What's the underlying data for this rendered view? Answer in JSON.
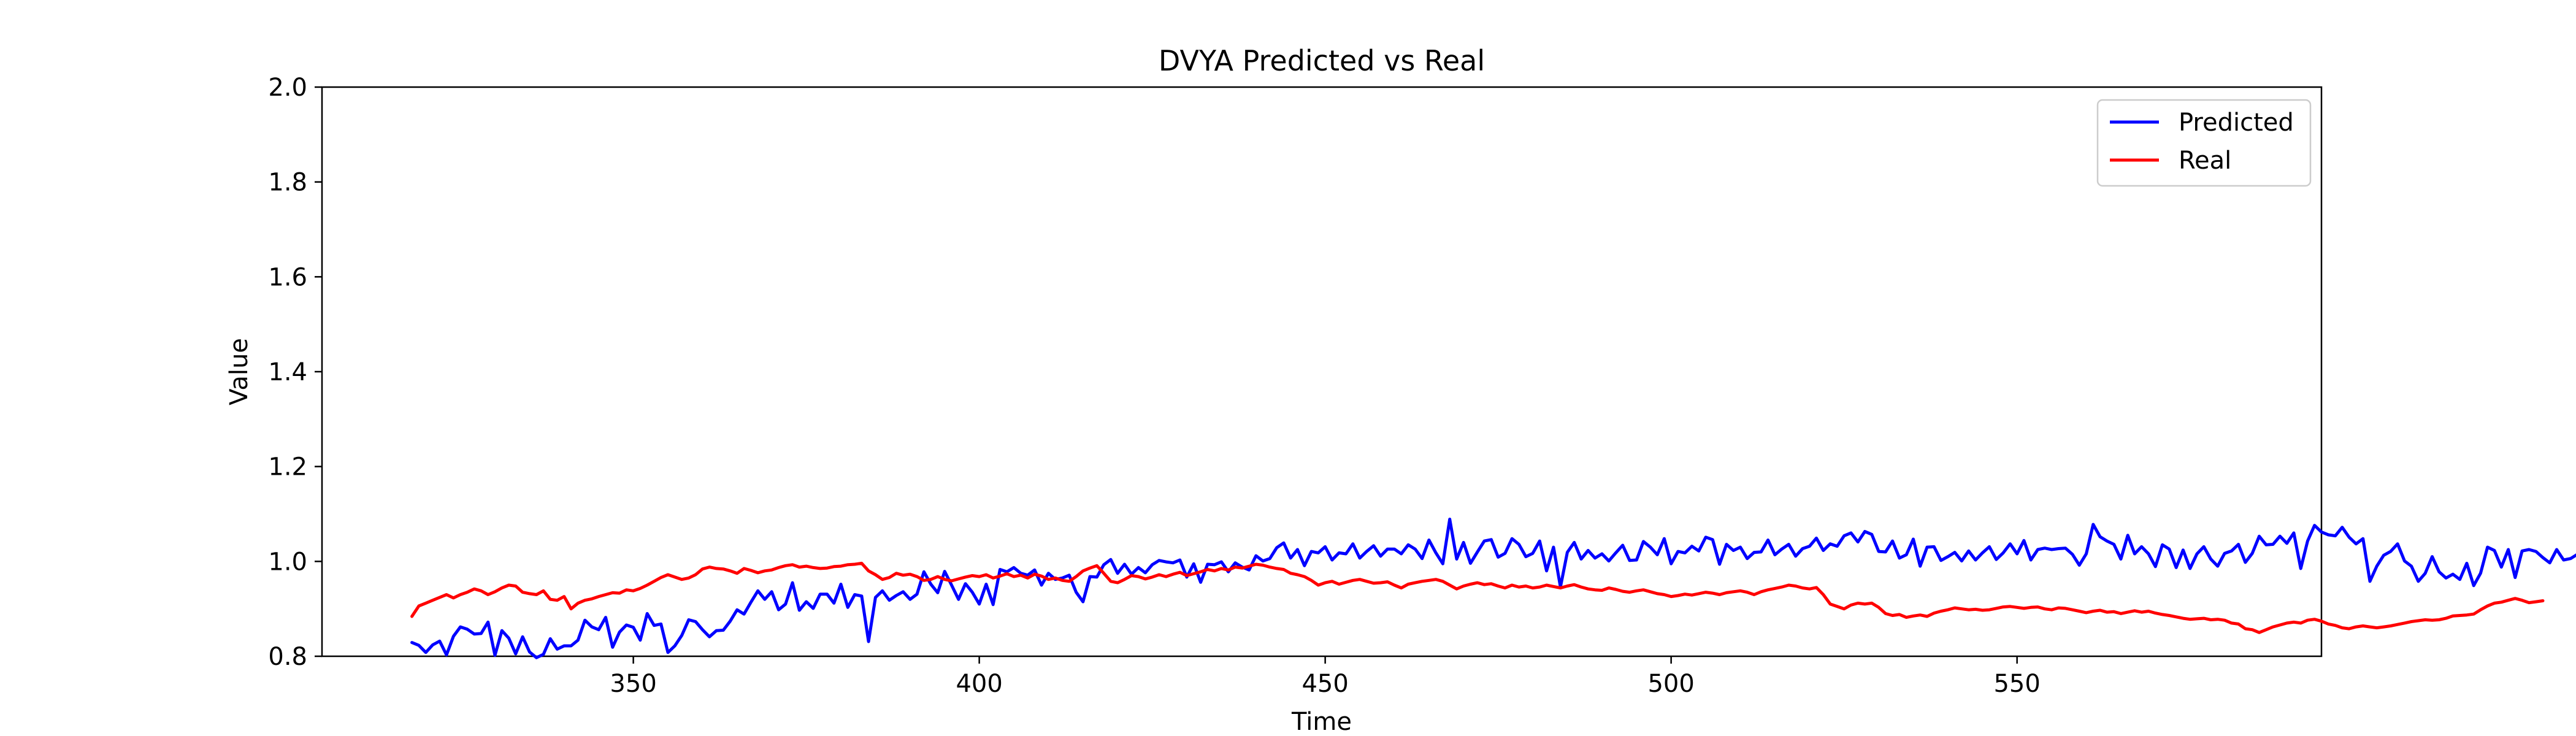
{
  "chart_data": {
    "type": "line",
    "title": "DVYA Predicted vs Real",
    "xlabel": "Time",
    "ylabel": "Value",
    "xlim": [
      305,
      594
    ],
    "ylim": [
      0.8,
      2.0
    ],
    "x_ticks": [
      350,
      400,
      450,
      500,
      550
    ],
    "y_ticks": [
      0.8,
      1.0,
      1.2,
      1.4,
      1.6,
      1.8,
      2.0
    ],
    "grid": false,
    "legend_position": "top-right",
    "x_start": 318,
    "series": [
      {
        "name": "Predicted",
        "color": "#0000ff",
        "values": [
          0.829,
          0.823,
          0.808,
          0.824,
          0.832,
          0.803,
          0.842,
          0.862,
          0.857,
          0.847,
          0.848,
          0.872,
          0.802,
          0.854,
          0.838,
          0.805,
          0.841,
          0.809,
          0.797,
          0.804,
          0.837,
          0.815,
          0.822,
          0.822,
          0.834,
          0.876,
          0.862,
          0.856,
          0.882,
          0.819,
          0.851,
          0.866,
          0.861,
          0.834,
          0.89,
          0.865,
          0.868,
          0.808,
          0.822,
          0.844,
          0.877,
          0.873,
          0.856,
          0.841,
          0.854,
          0.855,
          0.874,
          0.898,
          0.889,
          0.914,
          0.938,
          0.92,
          0.936,
          0.898,
          0.91,
          0.955,
          0.897,
          0.915,
          0.901,
          0.931,
          0.931,
          0.912,
          0.952,
          0.903,
          0.93,
          0.927,
          0.831,
          0.924,
          0.938,
          0.918,
          0.928,
          0.936,
          0.92,
          0.931,
          0.978,
          0.952,
          0.934,
          0.979,
          0.95,
          0.92,
          0.953,
          0.935,
          0.91,
          0.952,
          0.909,
          0.983,
          0.978,
          0.987,
          0.975,
          0.971,
          0.982,
          0.95,
          0.975,
          0.962,
          0.965,
          0.971,
          0.935,
          0.915,
          0.968,
          0.967,
          0.993,
          1.004,
          0.975,
          0.994,
          0.973,
          0.987,
          0.976,
          0.993,
          1.002,
          0.999,
          0.997,
          1.003,
          0.967,
          0.995,
          0.956,
          0.994,
          0.993,
          0.999,
          0.978,
          0.997,
          0.988,
          0.982,
          1.012,
          1.001,
          1.006,
          1.029,
          1.039,
          1.007,
          1.025,
          0.991,
          1.021,
          1.018,
          1.031,
          1.003,
          1.018,
          1.016,
          1.037,
          1.007,
          1.021,
          1.033,
          1.011,
          1.026,
          1.026,
          1.016,
          1.035,
          1.026,
          1.006,
          1.045,
          1.018,
          0.995,
          1.089,
          1.005,
          1.04,
          0.996,
          1.02,
          1.043,
          1.046,
          1.009,
          1.017,
          1.048,
          1.036,
          1.01,
          1.017,
          1.043,
          0.98,
          1.03,
          0.946,
          1.019,
          1.04,
          1.005,
          1.023,
          1.007,
          1.016,
          1.001,
          1.018,
          1.034,
          1.002,
          1.003,
          1.042,
          1.03,
          1.014,
          1.048,
          0.995,
          1.021,
          1.018,
          1.032,
          1.022,
          1.051,
          1.046,
          0.994,
          1.036,
          1.023,
          1.03,
          1.006,
          1.019,
          1.02,
          1.045,
          1.014,
          1.026,
          1.036,
          1.011,
          1.027,
          1.032,
          1.049,
          1.023,
          1.037,
          1.032,
          1.054,
          1.06,
          1.041,
          1.063,
          1.057,
          1.021,
          1.02,
          1.043,
          1.007,
          1.014,
          1.047,
          0.99,
          1.03,
          1.031,
          1.002,
          1.01,
          1.019,
          1.001,
          1.022,
          1.003,
          1.018,
          1.031,
          1.004,
          1.018,
          1.037,
          1.016,
          1.044,
          1.003,
          1.025,
          1.028,
          1.025,
          1.027,
          1.028,
          1.015,
          0.992,
          1.016,
          1.078,
          1.052,
          1.043,
          1.036,
          1.005,
          1.055,
          1.016,
          1.031,
          1.016,
          0.989,
          1.035,
          1.026,
          0.987,
          1.024,
          0.985,
          1.016,
          1.031,
          1.005,
          0.99,
          1.017,
          1.022,
          1.036,
          0.998,
          1.017,
          1.053,
          1.035,
          1.036,
          1.053,
          1.038,
          1.06,
          0.985,
          1.043,
          1.076,
          1.062,
          1.056,
          1.054,
          1.072,
          1.051,
          1.037,
          1.048,
          0.958,
          0.99,
          1.013,
          1.021,
          1.037,
          1.001,
          0.99,
          0.958,
          0.975,
          1.01,
          0.978,
          0.965,
          0.973,
          0.962,
          0.996,
          0.949,
          0.975,
          1.03,
          1.023,
          0.988,
          1.025,
          0.966,
          1.022,
          1.025,
          1.021,
          1.008,
          0.997,
          1.025,
          1.003,
          1.006,
          1.015
        ]
      },
      {
        "name": "Real",
        "color": "#ff0000",
        "values": [
          0.884,
          0.906,
          0.912,
          0.918,
          0.924,
          0.93,
          0.923,
          0.93,
          0.935,
          0.942,
          0.938,
          0.93,
          0.936,
          0.944,
          0.95,
          0.948,
          0.935,
          0.932,
          0.93,
          0.938,
          0.92,
          0.918,
          0.926,
          0.9,
          0.912,
          0.918,
          0.921,
          0.926,
          0.93,
          0.934,
          0.933,
          0.94,
          0.938,
          0.943,
          0.95,
          0.958,
          0.966,
          0.972,
          0.967,
          0.962,
          0.965,
          0.972,
          0.984,
          0.988,
          0.985,
          0.984,
          0.98,
          0.975,
          0.985,
          0.981,
          0.976,
          0.98,
          0.982,
          0.987,
          0.991,
          0.993,
          0.988,
          0.99,
          0.987,
          0.985,
          0.986,
          0.989,
          0.99,
          0.993,
          0.994,
          0.996,
          0.98,
          0.972,
          0.962,
          0.966,
          0.975,
          0.971,
          0.973,
          0.968,
          0.96,
          0.962,
          0.968,
          0.962,
          0.959,
          0.963,
          0.967,
          0.97,
          0.968,
          0.972,
          0.965,
          0.969,
          0.974,
          0.968,
          0.971,
          0.965,
          0.973,
          0.969,
          0.962,
          0.965,
          0.96,
          0.958,
          0.968,
          0.98,
          0.986,
          0.991,
          0.975,
          0.958,
          0.955,
          0.962,
          0.97,
          0.968,
          0.963,
          0.967,
          0.972,
          0.968,
          0.973,
          0.977,
          0.97,
          0.974,
          0.978,
          0.983,
          0.98,
          0.985,
          0.982,
          0.988,
          0.986,
          0.99,
          0.994,
          0.992,
          0.988,
          0.985,
          0.983,
          0.975,
          0.972,
          0.968,
          0.96,
          0.95,
          0.955,
          0.958,
          0.952,
          0.956,
          0.96,
          0.962,
          0.958,
          0.954,
          0.955,
          0.957,
          0.95,
          0.944,
          0.952,
          0.955,
          0.958,
          0.96,
          0.962,
          0.958,
          0.95,
          0.942,
          0.948,
          0.952,
          0.955,
          0.951,
          0.953,
          0.948,
          0.944,
          0.95,
          0.946,
          0.948,
          0.944,
          0.946,
          0.95,
          0.947,
          0.944,
          0.948,
          0.951,
          0.946,
          0.942,
          0.94,
          0.939,
          0.944,
          0.941,
          0.937,
          0.935,
          0.938,
          0.94,
          0.936,
          0.932,
          0.93,
          0.926,
          0.928,
          0.931,
          0.929,
          0.932,
          0.935,
          0.933,
          0.93,
          0.934,
          0.936,
          0.938,
          0.935,
          0.93,
          0.936,
          0.94,
          0.943,
          0.946,
          0.95,
          0.948,
          0.944,
          0.942,
          0.945,
          0.93,
          0.91,
          0.905,
          0.9,
          0.908,
          0.912,
          0.91,
          0.912,
          0.903,
          0.89,
          0.886,
          0.888,
          0.882,
          0.885,
          0.887,
          0.884,
          0.891,
          0.895,
          0.898,
          0.902,
          0.9,
          0.898,
          0.899,
          0.897,
          0.898,
          0.901,
          0.904,
          0.905,
          0.903,
          0.901,
          0.903,
          0.904,
          0.9,
          0.898,
          0.902,
          0.901,
          0.898,
          0.895,
          0.892,
          0.895,
          0.897,
          0.893,
          0.894,
          0.89,
          0.893,
          0.896,
          0.893,
          0.895,
          0.891,
          0.888,
          0.886,
          0.883,
          0.88,
          0.878,
          0.879,
          0.88,
          0.877,
          0.878,
          0.876,
          0.87,
          0.868,
          0.858,
          0.856,
          0.85,
          0.856,
          0.862,
          0.866,
          0.87,
          0.872,
          0.87,
          0.876,
          0.878,
          0.874,
          0.868,
          0.865,
          0.86,
          0.858,
          0.862,
          0.864,
          0.862,
          0.86,
          0.862,
          0.864,
          0.867,
          0.87,
          0.873,
          0.875,
          0.877,
          0.876,
          0.877,
          0.88,
          0.885,
          0.886,
          0.887,
          0.889,
          0.898,
          0.906,
          0.912,
          0.914,
          0.918,
          0.922,
          0.918,
          0.913,
          0.915,
          0.917
        ]
      }
    ]
  }
}
